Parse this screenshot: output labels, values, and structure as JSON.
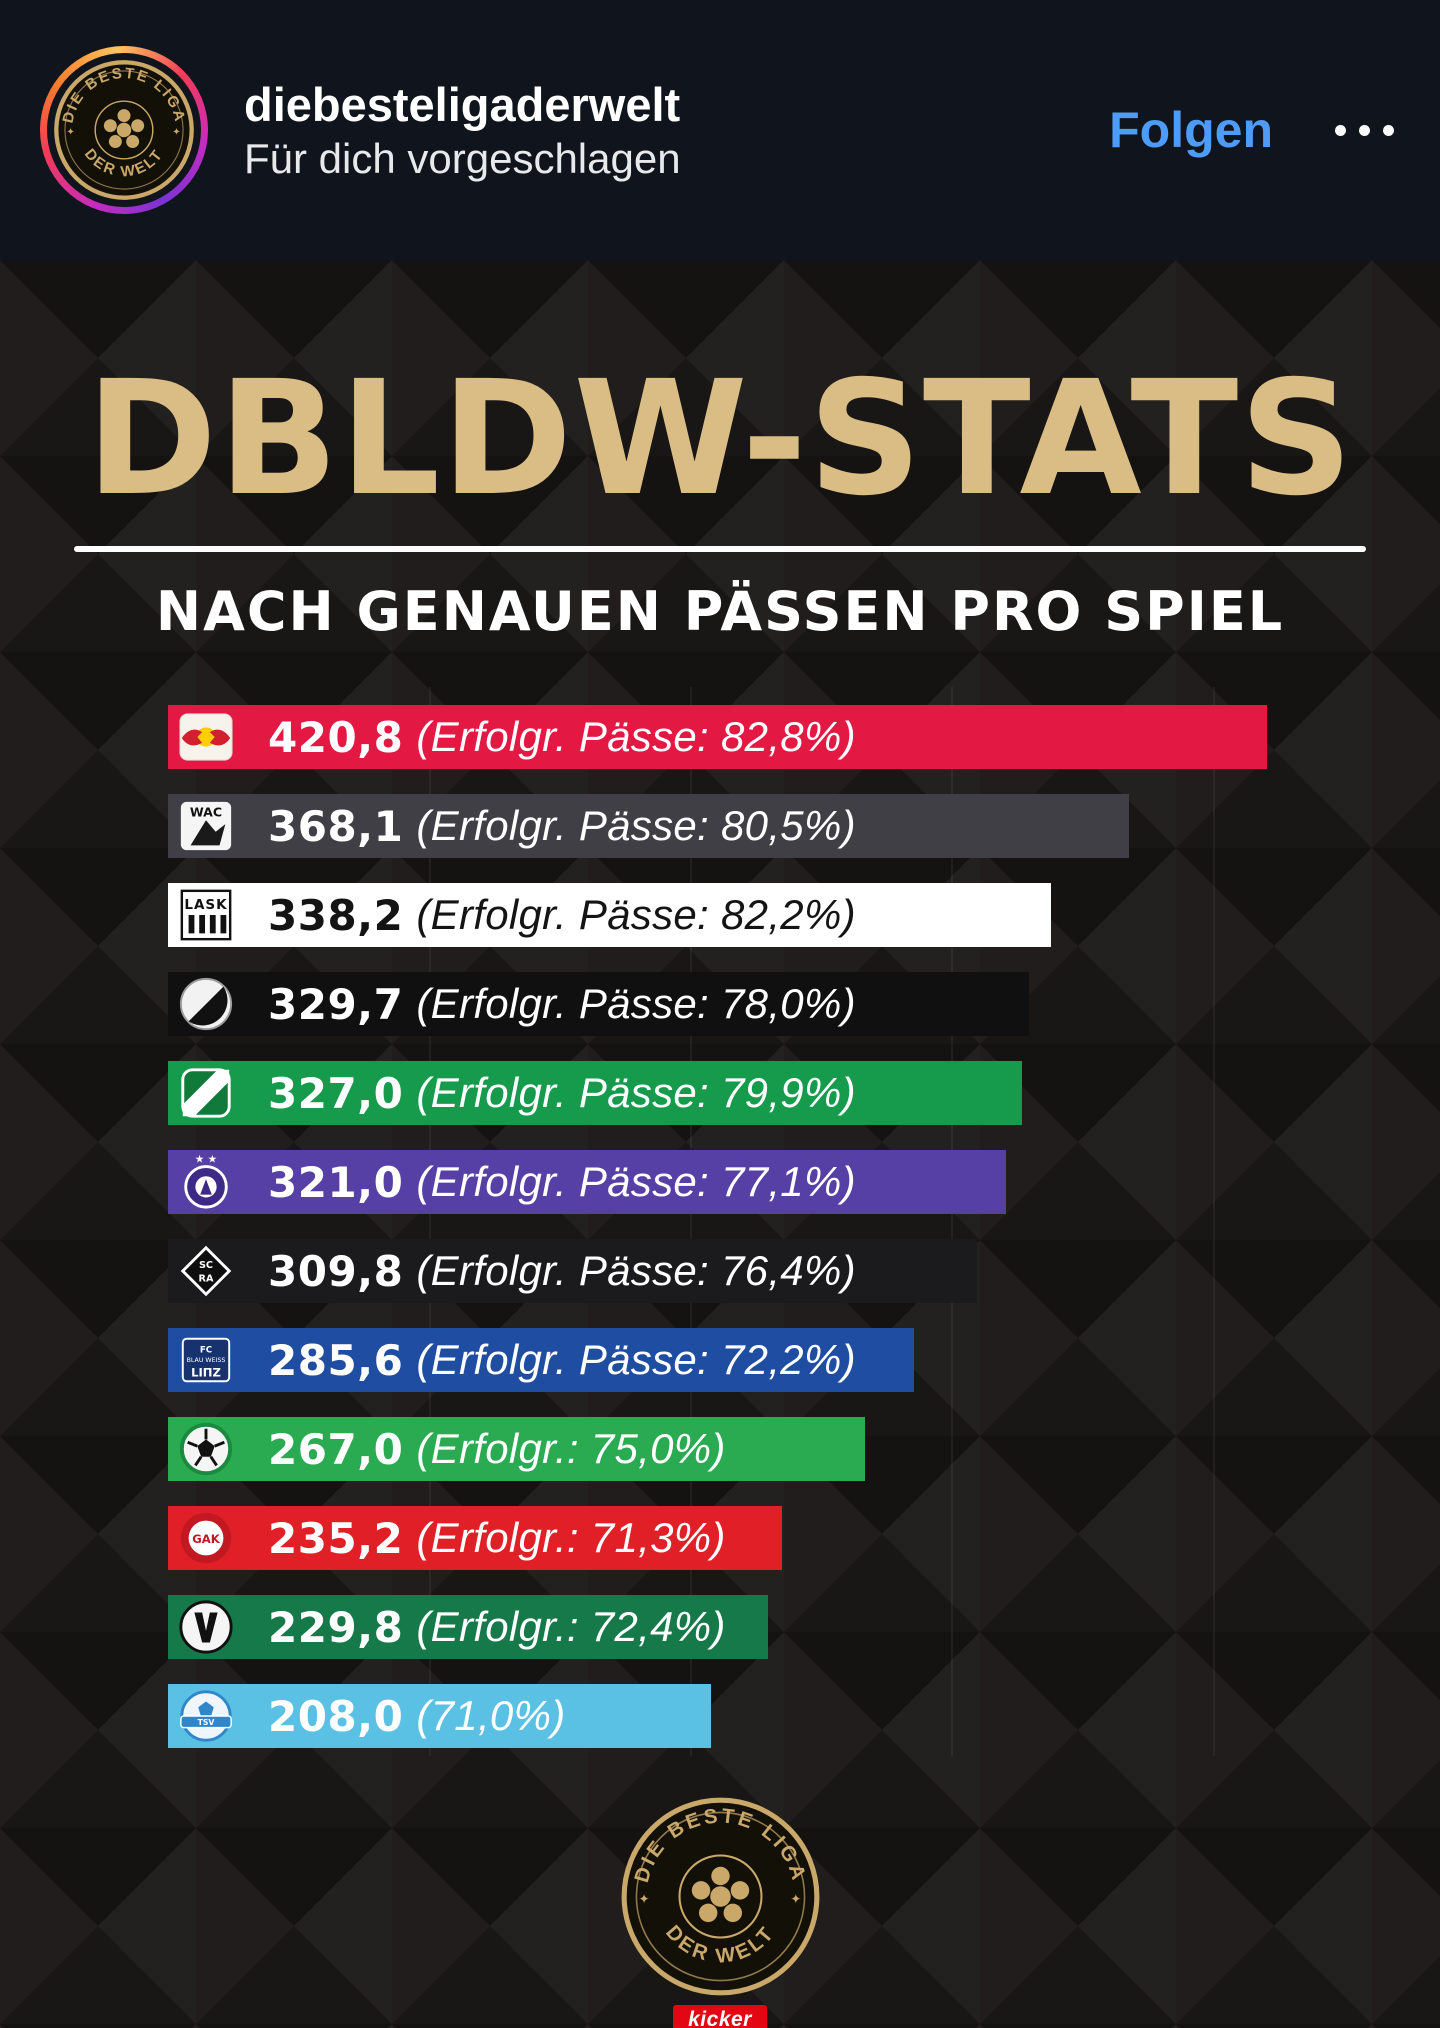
{
  "header": {
    "username": "diebesteligaderwelt",
    "suggested": "Für dich vorgeschlagen",
    "follow_label": "Folgen",
    "accent_color": "#4c9cf8"
  },
  "brand": {
    "circle_top": "DIE BESTE LIGA",
    "circle_bottom": "DER WELT",
    "kicker_label": "kicker",
    "gold_color": "#c9a869"
  },
  "post": {
    "title": "DBLDW-STATS",
    "subtitle": "NACH GENAUEN PÄSSEN PRO SPIEL",
    "title_color": "#d9bd84"
  },
  "chart_data": {
    "type": "bar",
    "orientation": "horizontal",
    "title": "DBLDW-STATS",
    "subtitle": "NACH GENAUEN PÄSSEN PRO SPIEL",
    "value_meaning": "Genaue Pässe pro Spiel",
    "xlim": [
      0,
      420.8
    ],
    "gridlines": [
      100,
      200,
      300,
      400
    ],
    "teams": [
      {
        "team": "Red Bull Salzburg",
        "value": 420.8,
        "value_label": "420,8",
        "detail": "(Erfolgr. Pässe: 82,8%)",
        "pass_accuracy_pct": 82.8,
        "bar_color": "#e31843",
        "text_color": "#ffffff"
      },
      {
        "team": "Wolfsberger AC",
        "value": 368.1,
        "value_label": "368,1",
        "detail": "(Erfolgr. Pässe: 80,5%)",
        "pass_accuracy_pct": 80.5,
        "bar_color": "#403f45",
        "text_color": "#ffffff"
      },
      {
        "team": "LASK",
        "value": 338.2,
        "value_label": "338,2",
        "detail": "(Erfolgr. Pässe: 82,2%)",
        "pass_accuracy_pct": 82.2,
        "bar_color": "#ffffff",
        "text_color": "#141414"
      },
      {
        "team": "SK Sturm Graz",
        "value": 329.7,
        "value_label": "329,7",
        "detail": "(Erfolgr. Pässe: 78,0%)",
        "pass_accuracy_pct": 78.0,
        "bar_color": "#101010",
        "text_color": "#ffffff"
      },
      {
        "team": "SK Rapid Wien",
        "value": 327.0,
        "value_label": "327,0",
        "detail": "(Erfolgr. Pässe: 79,9%)",
        "pass_accuracy_pct": 79.9,
        "bar_color": "#169a4b",
        "text_color": "#ffffff"
      },
      {
        "team": "FK Austria Wien",
        "value": 321.0,
        "value_label": "321,0",
        "detail": "(Erfolgr. Pässe: 77,1%)",
        "pass_accuracy_pct": 77.1,
        "bar_color": "#5640a5",
        "text_color": "#ffffff"
      },
      {
        "team": "SCR Altach",
        "value": 309.8,
        "value_label": "309,8",
        "detail": "(Erfolgr. Pässe: 76,4%)",
        "pass_accuracy_pct": 76.4,
        "bar_color": "#1b1b1e",
        "text_color": "#ffffff"
      },
      {
        "team": "FC Blau-Weiß Linz",
        "value": 285.6,
        "value_label": "285,6",
        "detail": "(Erfolgr. Pässe: 72,2%)",
        "pass_accuracy_pct": 72.2,
        "bar_color": "#1e4da1",
        "text_color": "#ffffff"
      },
      {
        "team": "WSG Tirol",
        "value": 267.0,
        "value_label": "267,0",
        "detail": "(Erfolgr.: 75,0%)",
        "pass_accuracy_pct": 75.0,
        "bar_color": "#2aab51",
        "text_color": "#ffffff"
      },
      {
        "team": "GAK 1902",
        "value": 235.2,
        "value_label": "235,2",
        "detail": "(Erfolgr.: 71,3%)",
        "pass_accuracy_pct": 71.3,
        "bar_color": "#e01f26",
        "text_color": "#ffffff"
      },
      {
        "team": "SV Ried",
        "value": 229.8,
        "value_label": "229,8",
        "detail": "(Erfolgr.: 72,4%)",
        "pass_accuracy_pct": 72.4,
        "bar_color": "#16794a",
        "text_color": "#ffffff"
      },
      {
        "team": "TSV Hartberg",
        "value": 208.0,
        "value_label": "208,0",
        "detail": "(71,0%)",
        "pass_accuracy_pct": 71.0,
        "bar_color": "#5ac1e4",
        "text_color": "#ffffff"
      }
    ]
  }
}
